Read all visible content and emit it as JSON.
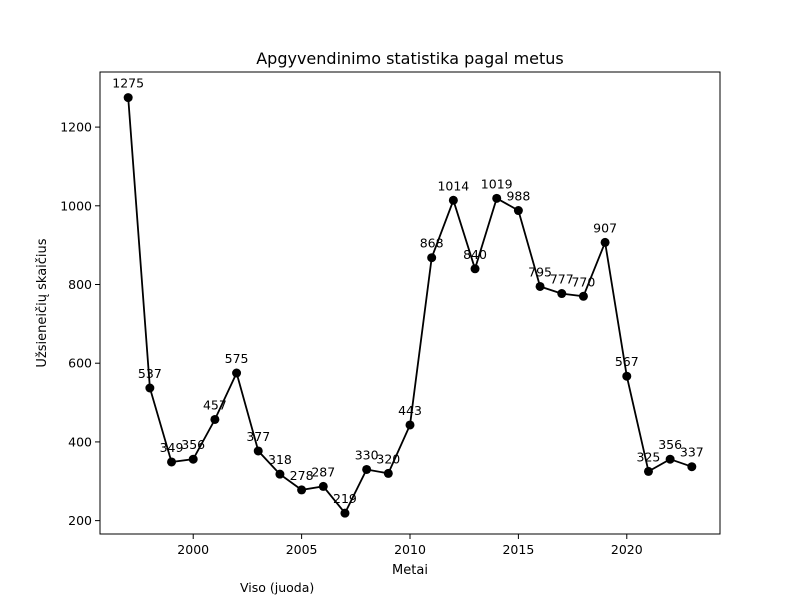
{
  "chart_data": {
    "type": "line",
    "title": "Apgyvendinimo statistika pagal metus",
    "xlabel": "Metai",
    "ylabel": "Užsieneičių skaičius",
    "xlim": [
      1995.7,
      2024.3
    ],
    "ylim": [
      166,
      1340
    ],
    "xticks": [
      2000,
      2005,
      2010,
      2015,
      2020
    ],
    "yticks": [
      200,
      400,
      600,
      800,
      1000,
      1200
    ],
    "grid": false,
    "color": "#000000",
    "x": [
      1997,
      1998,
      1999,
      2000,
      2001,
      2002,
      2003,
      2004,
      2005,
      2006,
      2007,
      2008,
      2009,
      2010,
      2011,
      2012,
      2013,
      2014,
      2015,
      2016,
      2017,
      2018,
      2019,
      2020,
      2021,
      2022,
      2023
    ],
    "values": [
      1275,
      537,
      349,
      356,
      457,
      575,
      377,
      318,
      278,
      287,
      219,
      330,
      320,
      443,
      868,
      1014,
      840,
      1019,
      988,
      795,
      777,
      770,
      907,
      567,
      325,
      356,
      337
    ]
  },
  "footnote": "Viso (juoda)"
}
